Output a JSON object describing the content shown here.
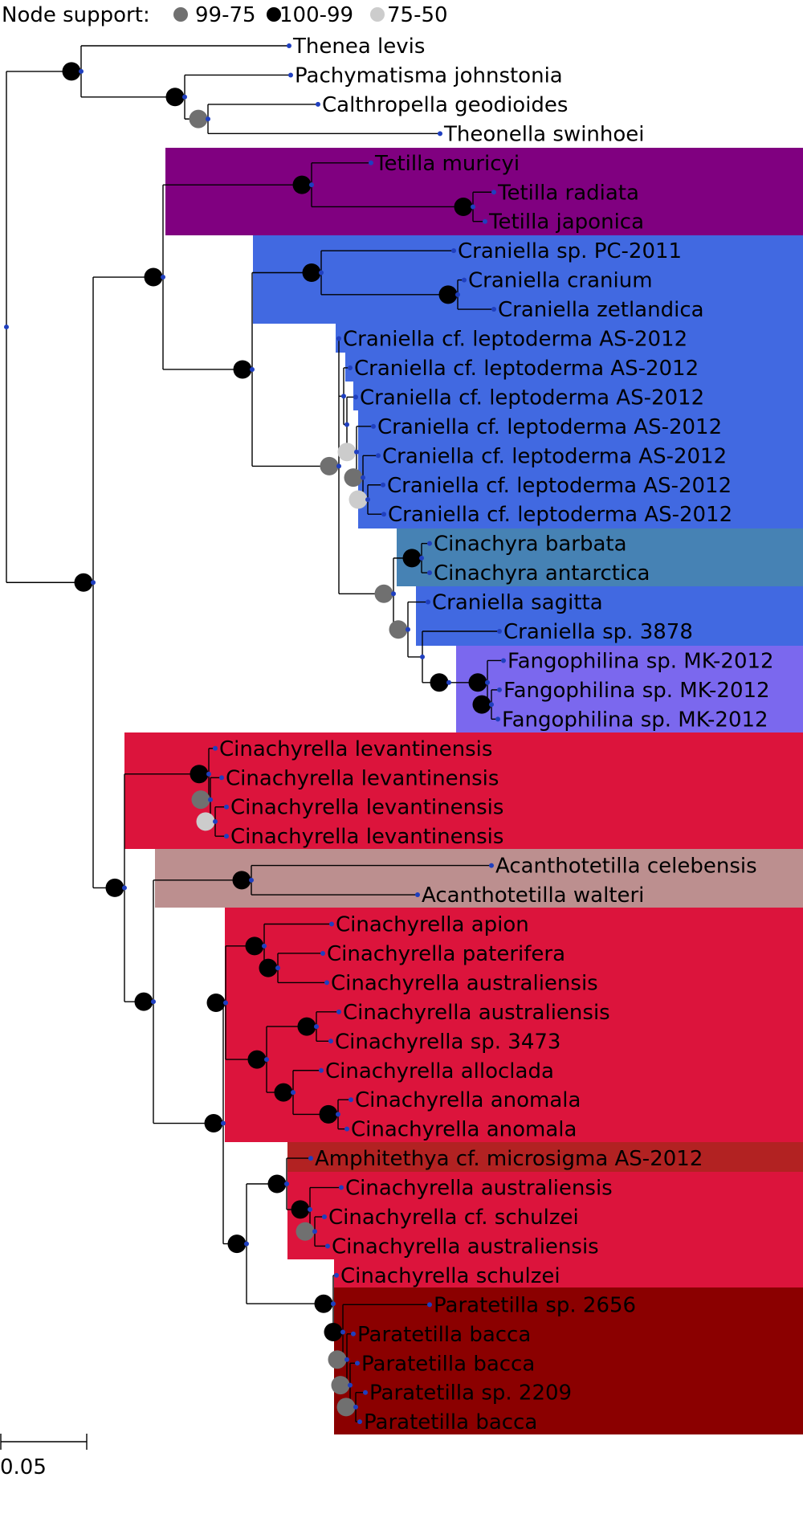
{
  "legend": {
    "title": "Node support:",
    "items": [
      {
        "label": "99-75",
        "color": "#707070"
      },
      {
        "label": "100-99",
        "color": "#000000"
      },
      {
        "label": "75-50",
        "color": "#cccccc"
      }
    ]
  },
  "scale_bar": {
    "label": "0.05"
  },
  "clade_colors": {
    "tetilla": "#800080",
    "craniella": "#4169e1",
    "cinachyra": "#4682b4",
    "fangophilina": "#7b68ee",
    "cinachyrella": "#dc143c",
    "acanthotetilla": "#bc8f8f",
    "amphitethya": "#b22222",
    "paratetilla": "#8b0000"
  },
  "taxa": [
    "Thenea levis",
    "Pachymatisma johnstonia",
    "Calthropella geodioides",
    "Theonella swinhoei",
    "Tetilla muricyi",
    "Tetilla radiata",
    "Tetilla japonica",
    "Craniella sp. PC-2011",
    "Craniella cranium",
    "Craniella zetlandica",
    "Craniella cf. leptoderma AS-2012",
    "Craniella cf. leptoderma AS-2012",
    "Craniella cf. leptoderma AS-2012",
    "Craniella cf. leptoderma AS-2012",
    "Craniella cf. leptoderma AS-2012",
    "Craniella cf. leptoderma AS-2012",
    "Craniella cf. leptoderma AS-2012",
    "Cinachyra barbata",
    "Cinachyra antarctica",
    "Craniella sagitta",
    "Craniella sp. 3878",
    "Fangophilina sp. MK-2012",
    "Fangophilina sp. MK-2012",
    "Fangophilina sp. MK-2012",
    "Cinachyrella levantinensis",
    "Cinachyrella levantinensis",
    "Cinachyrella levantinensis",
    "Cinachyrella levantinensis",
    "Acanthotetilla celebensis",
    "Acanthotetilla walteri",
    "Cinachyrella apion",
    "Cinachyrella paterifera",
    "Cinachyrella australiensis",
    "Cinachyrella australiensis",
    "Cinachyrella sp. 3473",
    "Cinachyrella alloclada",
    "Cinachyrella anomala",
    "Cinachyrella anomala",
    "Amphitethya cf. microsigma AS-2012",
    "Cinachyrella australiensis",
    "Cinachyrella cf. schulzei",
    "Cinachyrella australiensis",
    "Cinachyrella schulzei",
    "Paratetilla sp. 2656",
    "Paratetilla bacca",
    "Paratetilla bacca",
    "Paratetilla sp. 2209",
    "Paratetilla bacca"
  ]
}
